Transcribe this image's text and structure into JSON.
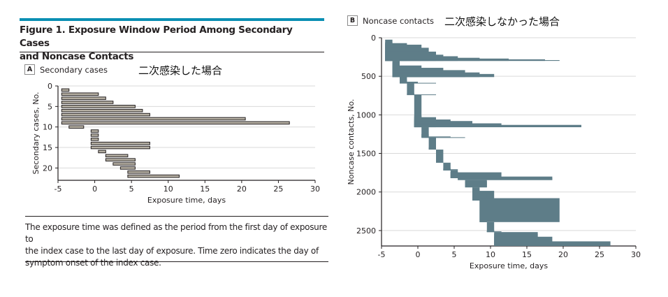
{
  "figure": {
    "title_line1": "Figure 1. Exposure Window Period Among Secondary Cases",
    "title_line2": "and Noncase Contacts",
    "caption_line1": "The exposure time was defined as the period from the first day of exposure to",
    "caption_line2": "the index case to the last day of exposure. Time zero indicates the day of",
    "caption_line3": "symptom onset of the index case.",
    "accent_color": "#0a8fb3"
  },
  "panels": {
    "a": {
      "letter": "A",
      "label": "Secondary cases",
      "annotation": "二次感染した場合"
    },
    "b": {
      "letter": "B",
      "label": "Noncase contacts",
      "annotation": "二次感染しなかった場合"
    }
  },
  "chart_data": [
    {
      "type": "bar",
      "subtype": "horizontal-range",
      "title": "Secondary cases",
      "xlabel": "Exposure time, days",
      "ylabel": "Secondary cases, No.",
      "xlim": [
        -5,
        30
      ],
      "ylim": [
        0,
        23
      ],
      "y_inverted": true,
      "xticks": [
        -5,
        0,
        5,
        10,
        15,
        20,
        25,
        30
      ],
      "yticks": [
        0,
        5,
        10,
        15,
        20
      ],
      "grid": "horizontal",
      "bar_fill": "#b7b1a4",
      "bar_stroke": "#231f20",
      "ranges": [
        {
          "case": 1,
          "start": -4.5,
          "end": -3.5
        },
        {
          "case": 2,
          "start": -4.5,
          "end": 0.5
        },
        {
          "case": 3,
          "start": -4.5,
          "end": 1.5
        },
        {
          "case": 4,
          "start": -4.5,
          "end": 2.5
        },
        {
          "case": 5,
          "start": -4.5,
          "end": 5.5
        },
        {
          "case": 6,
          "start": -4.5,
          "end": 6.5
        },
        {
          "case": 7,
          "start": -4.5,
          "end": 7.5
        },
        {
          "case": 8,
          "start": -4.5,
          "end": 20.5
        },
        {
          "case": 9,
          "start": -4.5,
          "end": 26.5
        },
        {
          "case": 10,
          "start": -3.5,
          "end": -1.5
        },
        {
          "case": 11,
          "start": -0.5,
          "end": 0.5
        },
        {
          "case": 12,
          "start": -0.5,
          "end": 0.5
        },
        {
          "case": 13,
          "start": -0.5,
          "end": 0.5
        },
        {
          "case": 14,
          "start": -0.5,
          "end": 7.5
        },
        {
          "case": 15,
          "start": -0.5,
          "end": 7.5
        },
        {
          "case": 16,
          "start": 0.5,
          "end": 1.5
        },
        {
          "case": 17,
          "start": 1.5,
          "end": 4.5
        },
        {
          "case": 18,
          "start": 1.5,
          "end": 5.5
        },
        {
          "case": 19,
          "start": 2.5,
          "end": 5.5
        },
        {
          "case": 20,
          "start": 3.5,
          "end": 5.5
        },
        {
          "case": 21,
          "start": 4.5,
          "end": 7.5
        },
        {
          "case": 22,
          "start": 4.5,
          "end": 11.5
        }
      ]
    },
    {
      "type": "area",
      "subtype": "stacked-exposure-ranges",
      "title": "Noncase contacts",
      "xlabel": "Exposure time, days",
      "ylabel": "Noncase contacts, No.",
      "xlim": [
        -5,
        30
      ],
      "ylim": [
        0,
        2700
      ],
      "y_inverted": true,
      "xticks": [
        -5,
        0,
        5,
        10,
        15,
        20,
        25,
        30
      ],
      "yticks": [
        0,
        500,
        1000,
        1500,
        2000,
        2500
      ],
      "grid": "horizontal",
      "fill": "#5e7d88",
      "groups": [
        {
          "y_from": 25,
          "y_to": 300,
          "start": -4.5,
          "steps": [
            [
              60,
              -3.5
            ],
            [
              70,
              -1.5
            ],
            [
              90,
              0.5
            ],
            [
              130,
              1.5
            ],
            [
              180,
              2.5
            ],
            [
              220,
              3.5
            ],
            [
              240,
              5.5
            ],
            [
              260,
              8.5
            ],
            [
              270,
              12.5
            ],
            [
              280,
              17.5
            ],
            [
              290,
              19.5
            ]
          ]
        },
        {
          "y_from": 300,
          "y_to": 510,
          "start": -3.5,
          "steps": [
            [
              320,
              -2.5
            ],
            [
              360,
              0.5
            ],
            [
              390,
              3.5
            ],
            [
              420,
              6.5
            ],
            [
              450,
              8.5
            ],
            [
              470,
              10.5
            ]
          ]
        },
        {
          "y_from": 510,
          "y_to": 590,
          "start": -2.5,
          "steps": [
            [
              550,
              -1.5
            ],
            [
              570,
              0
            ],
            [
              585,
              2.5
            ]
          ]
        },
        {
          "y_from": 590,
          "y_to": 740,
          "start": -1.5,
          "steps": [
            [
              720,
              -0.5
            ],
            [
              735,
              2.5
            ]
          ]
        },
        {
          "y_from": 740,
          "y_to": 1160,
          "start": -0.5,
          "steps": [
            [
              1010,
              0.5
            ],
            [
              1030,
              2.5
            ],
            [
              1060,
              4.5
            ],
            [
              1080,
              7.5
            ],
            [
              1110,
              11.5
            ],
            [
              1130,
              22.5
            ]
          ]
        },
        {
          "y_from": 1160,
          "y_to": 1290,
          "start": 0.5,
          "steps": [
            [
              1250,
              1.5
            ],
            [
              1280,
              4.5
            ],
            [
              1290,
              6.5
            ]
          ]
        },
        {
          "y_from": 1290,
          "y_to": 1450,
          "start": 1.5,
          "steps": [
            [
              1420,
              2.5
            ]
          ]
        },
        {
          "y_from": 1450,
          "y_to": 1620,
          "start": 2.5,
          "steps": [
            [
              1600,
              3.5
            ]
          ]
        },
        {
          "y_from": 1620,
          "y_to": 1720,
          "start": 3.5,
          "steps": [
            [
              1690,
              4.5
            ],
            [
              1705,
              5.5
            ]
          ]
        },
        {
          "y_from": 1720,
          "y_to": 1820,
          "start": 4.5,
          "steps": [
            [
              1740,
              5.5
            ],
            [
              1745,
              11.5
            ]
          ]
        },
        {
          "y_from": 1820,
          "y_to": 1845,
          "start": 5.5,
          "steps": [
            [
              1800,
              18.5
            ]
          ]
        },
        {
          "y_from": 1845,
          "y_to": 1940,
          "start": 6.5,
          "steps": [
            [
              1860,
              9.5
            ]
          ]
        },
        {
          "y_from": 1940,
          "y_to": 2110,
          "start": 7.5,
          "steps": [
            [
              1970,
              8.5
            ],
            [
              1985,
              10.5
            ]
          ]
        },
        {
          "y_from": 2110,
          "y_to": 2390,
          "start": 8.5,
          "steps": [
            [
              2030,
              9.5
            ],
            [
              2080,
              19.5
            ]
          ]
        },
        {
          "y_from": 2390,
          "y_to": 2520,
          "start": 9.5,
          "steps": [
            [
              2500,
              10.5
            ],
            [
              2510,
              11.5
            ]
          ]
        },
        {
          "y_from": 2520,
          "y_to": 2700,
          "start": 10.5,
          "steps": [
            [
              2540,
              16.5
            ],
            [
              2580,
              18.5
            ],
            [
              2640,
              26.5
            ]
          ]
        }
      ]
    }
  ]
}
